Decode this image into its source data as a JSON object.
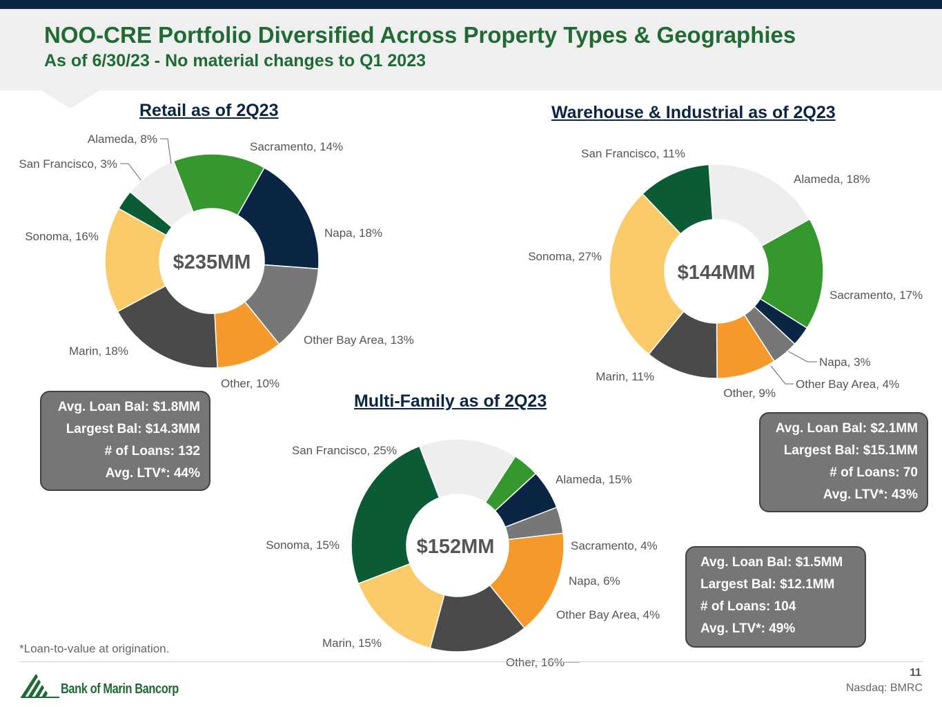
{
  "header": {
    "title": "NOO-CRE Portfolio Diversified Across Property Types & Geographies",
    "subtitle": "As of 6/30/23 - No material changes to Q1 2023"
  },
  "colors": {
    "header_bar": "#0b2545",
    "title_green": "#1f6b33",
    "San Francisco": "#0b5c34",
    "Alameda": "#eeeeee",
    "Sacramento": "#35982f",
    "Napa": "#0b2545",
    "Other Bay Area": "#777777",
    "Other": "#f59a2a",
    "Marin": "#4a4a4a",
    "Sonoma": "#fbcb6a"
  },
  "chart_data": [
    {
      "type": "pie",
      "variant": "donut",
      "title": "Retail as of 2Q23",
      "center_label": "$235MM",
      "slices": [
        {
          "label": "Sacramento",
          "value": 14,
          "text": "Sacramento, 14%"
        },
        {
          "label": "Napa",
          "value": 18,
          "text": "Napa, 18%"
        },
        {
          "label": "Other Bay Area",
          "value": 13,
          "text": "Other Bay Area, 13%"
        },
        {
          "label": "Other",
          "value": 10,
          "text": "Other, 10%"
        },
        {
          "label": "Marin",
          "value": 18,
          "text": "Marin, 18%"
        },
        {
          "label": "Sonoma",
          "value": 16,
          "text": "Sonoma, 16%"
        },
        {
          "label": "San Francisco",
          "value": 3,
          "text": "San Francisco, 3%"
        },
        {
          "label": "Alameda",
          "value": 8,
          "text": "Alameda, 8%"
        }
      ]
    },
    {
      "type": "pie",
      "variant": "donut",
      "title": "Warehouse & Industrial as of 2Q23",
      "center_label": "$144MM",
      "slices": [
        {
          "label": "Alameda",
          "value": 18,
          "text": "Alameda, 18%"
        },
        {
          "label": "Sacramento",
          "value": 17,
          "text": "Sacramento, 17%"
        },
        {
          "label": "Napa",
          "value": 3,
          "text": "Napa, 3%"
        },
        {
          "label": "Other Bay Area",
          "value": 4,
          "text": "Other Bay Area, 4%"
        },
        {
          "label": "Other",
          "value": 9,
          "text": "Other, 9%"
        },
        {
          "label": "Marin",
          "value": 11,
          "text": "Marin, 11%"
        },
        {
          "label": "Sonoma",
          "value": 27,
          "text": "Sonoma, 27%"
        },
        {
          "label": "San Francisco",
          "value": 11,
          "text": "San Francisco, 11%"
        }
      ]
    },
    {
      "type": "pie",
      "variant": "donut",
      "title": "Multi-Family as of 2Q23",
      "center_label": "$152MM",
      "slices": [
        {
          "label": "Alameda",
          "value": 15,
          "text": "Alameda, 15%"
        },
        {
          "label": "Sacramento",
          "value": 4,
          "text": "Sacramento, 4%"
        },
        {
          "label": "Napa",
          "value": 6,
          "text": "Napa, 6%"
        },
        {
          "label": "Other Bay Area",
          "value": 4,
          "text": "Other Bay Area, 4%"
        },
        {
          "label": "Other",
          "value": 16,
          "text": "Other, 16%"
        },
        {
          "label": "Marin",
          "value": 15,
          "text": "Marin, 15%"
        },
        {
          "label": "Sonoma",
          "value": 15,
          "text": "Sonoma, 15%"
        },
        {
          "label": "San Francisco",
          "value": 25,
          "text": "San Francisco, 25%"
        }
      ]
    }
  ],
  "stats": {
    "retail": [
      "Avg. Loan Bal: $1.8MM",
      "Largest Bal: $14.3MM",
      "# of Loans: 132",
      "Avg. LTV*: 44%"
    ],
    "warehouse": [
      "Avg. Loan Bal: $2.1MM",
      "Largest Bal: $15.1MM",
      "# of Loans: 70",
      "Avg. LTV*: 43%"
    ],
    "multifamily": [
      "Avg. Loan Bal: $1.5MM",
      "Largest Bal: $12.1MM",
      "# of Loans: 104",
      "Avg. LTV*: 49%"
    ]
  },
  "footer": {
    "footnote": "*Loan-to-value at origination.",
    "page_number": "11",
    "ticker": "Nasdaq: BMRC",
    "logo_text": "Bank of Marin Bancorp"
  }
}
